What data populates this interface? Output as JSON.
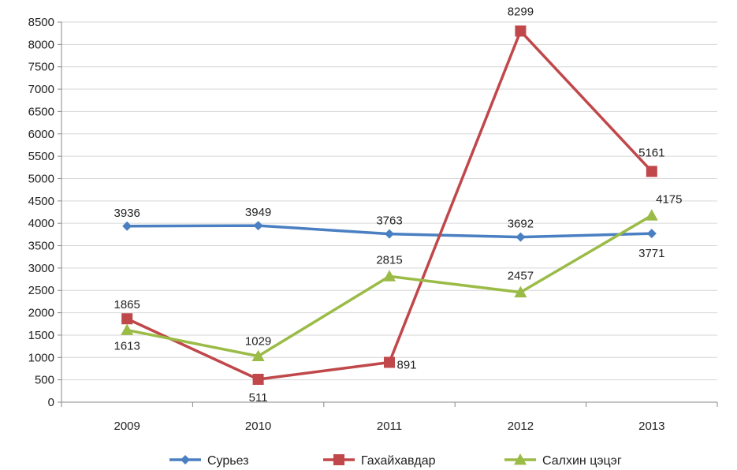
{
  "chart_data": {
    "type": "line",
    "categories": [
      "2009",
      "2010",
      "2011",
      "2012",
      "2013"
    ],
    "ylim": [
      0,
      8500
    ],
    "ytick_step": 500,
    "grid": "horizontal",
    "legend_position": "bottom",
    "series": [
      {
        "name": "Сурьез",
        "color": "#4a7fc1",
        "marker": "diamond",
        "values": [
          3936,
          3949,
          3763,
          3692,
          3771
        ]
      },
      {
        "name": "Гахайхавдар",
        "color": "#c0474a",
        "marker": "square",
        "values": [
          1865,
          511,
          891,
          8299,
          5161
        ]
      },
      {
        "name": "Салхин цэцэг",
        "color": "#9bbb47",
        "marker": "triangle",
        "values": [
          1613,
          1029,
          2815,
          2457,
          4175
        ]
      }
    ]
  }
}
